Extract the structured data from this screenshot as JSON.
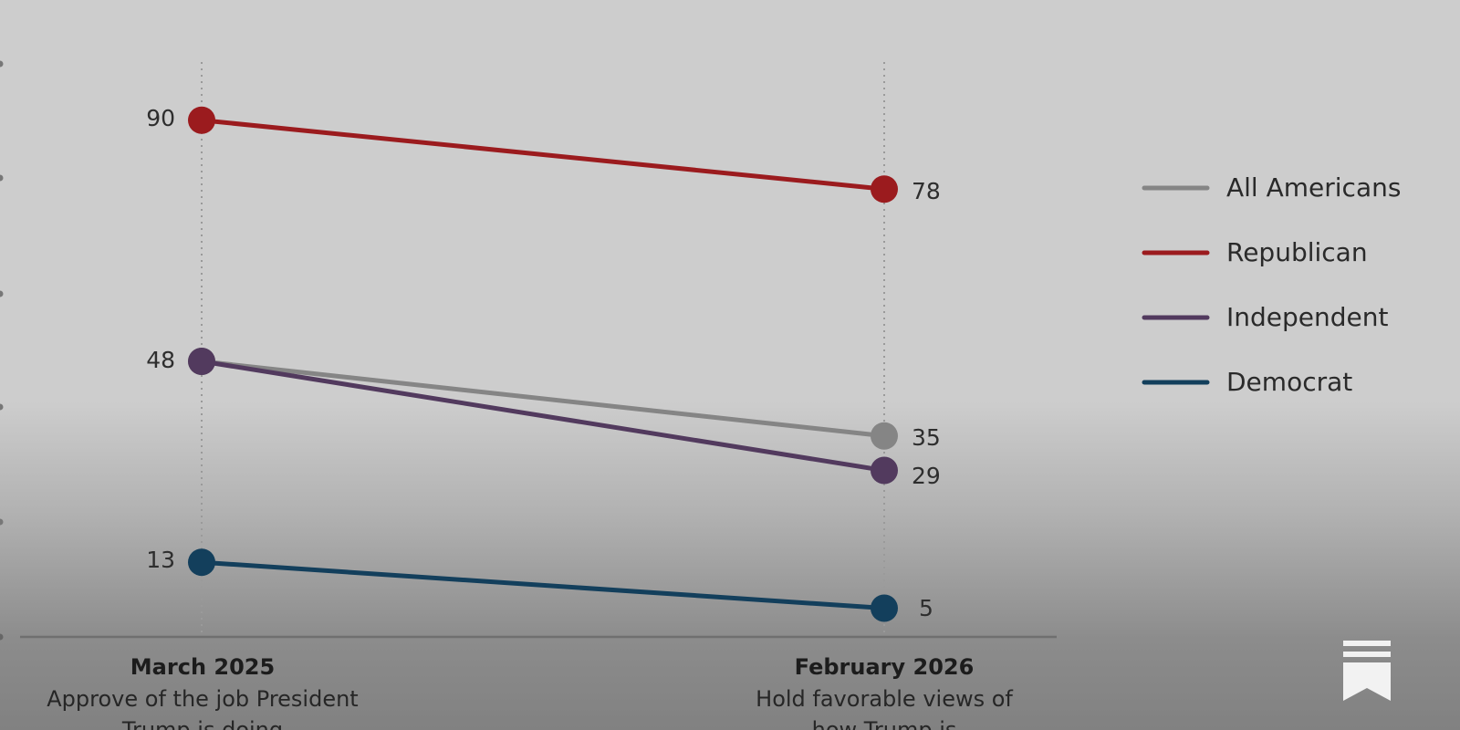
{
  "chart_data": {
    "type": "line",
    "categories": [
      "March 2025",
      "February 2026"
    ],
    "category_subtitles": [
      [
        "Approve of the job President",
        "Trump is doing"
      ],
      [
        "Hold favorable views of",
        "how Trump is"
      ]
    ],
    "series": [
      {
        "name": "All Americans",
        "values": [
          48,
          35
        ],
        "color": "#858585"
      },
      {
        "name": "Republican",
        "values": [
          90,
          78
        ],
        "color": "#9b1b1e"
      },
      {
        "name": "Independent",
        "values": [
          48,
          29
        ],
        "color": "#523a5e"
      },
      {
        "name": "Democrat",
        "values": [
          13,
          5
        ],
        "color": "#133f5c"
      }
    ],
    "data_labels": {
      "left": [
        "90",
        "48",
        "13"
      ],
      "right": [
        "78",
        "35",
        "29",
        "5"
      ]
    },
    "ylim": [
      0,
      100
    ],
    "legend_position": "right",
    "grid": "dotted-vertical"
  },
  "icons": {
    "publisher": "bookmark-icon"
  }
}
